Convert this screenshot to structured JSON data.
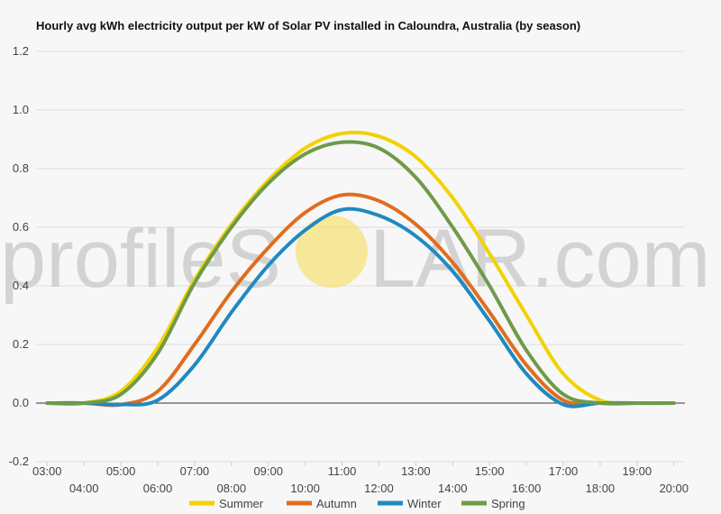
{
  "watermark": {
    "left": "profileS",
    "right": "LAR.com",
    "sun_color": "#f6e27a"
  },
  "chart_data": {
    "type": "line",
    "title": "Hourly avg kWh electricity output per kW of Solar PV installed in Caloundra, Australia (by season)",
    "xlabel": "",
    "ylabel": "",
    "x_ticks": [
      "03:00",
      "04:00",
      "05:00",
      "06:00",
      "07:00",
      "08:00",
      "09:00",
      "10:00",
      "11:00",
      "12:00",
      "13:00",
      "14:00",
      "15:00",
      "16:00",
      "17:00",
      "18:00",
      "19:00",
      "20:00"
    ],
    "x_range_hours": [
      2.7,
      20.3
    ],
    "y_ticks": [
      "-0.2",
      "0.0",
      "0.2",
      "0.4",
      "0.6",
      "0.8",
      "1.0",
      "1.2"
    ],
    "ylim": [
      -0.2,
      1.2
    ],
    "grid": true,
    "legend_position": "bottom",
    "series": [
      {
        "name": "Summer",
        "color": "#f2d200",
        "x": [
          3,
          4,
          5,
          6,
          7,
          8,
          9,
          10,
          11,
          12,
          13,
          14,
          15,
          16,
          17,
          18,
          19,
          20
        ],
        "values": [
          0,
          0,
          0.04,
          0.19,
          0.42,
          0.61,
          0.76,
          0.87,
          0.92,
          0.91,
          0.84,
          0.7,
          0.51,
          0.3,
          0.1,
          0.01,
          0,
          0
        ]
      },
      {
        "name": "Autumn",
        "color": "#e06d1f",
        "x": [
          3,
          4,
          5,
          6,
          7,
          8,
          9,
          10,
          11,
          12,
          13,
          14,
          15,
          16,
          17,
          18,
          19,
          20
        ],
        "values": [
          0,
          0,
          -0.005,
          0.04,
          0.2,
          0.38,
          0.53,
          0.65,
          0.71,
          0.69,
          0.61,
          0.48,
          0.31,
          0.13,
          0.01,
          0,
          0,
          0
        ]
      },
      {
        "name": "Winter",
        "color": "#1f8ac0",
        "x": [
          3,
          4,
          5,
          6,
          7,
          8,
          9,
          10,
          11,
          12,
          13,
          14,
          15,
          16,
          17,
          18,
          19,
          20
        ],
        "values": [
          0,
          0,
          -0.005,
          0.01,
          0.13,
          0.31,
          0.47,
          0.59,
          0.66,
          0.64,
          0.57,
          0.45,
          0.28,
          0.1,
          -0.005,
          0,
          0,
          0
        ]
      },
      {
        "name": "Spring",
        "color": "#6f9a4a",
        "x": [
          3,
          4,
          5,
          6,
          7,
          8,
          9,
          10,
          11,
          12,
          13,
          14,
          15,
          16,
          17,
          18,
          19,
          20
        ],
        "values": [
          0,
          0,
          0.03,
          0.17,
          0.41,
          0.6,
          0.75,
          0.85,
          0.89,
          0.87,
          0.77,
          0.6,
          0.4,
          0.18,
          0.03,
          0,
          0,
          0
        ]
      }
    ]
  }
}
